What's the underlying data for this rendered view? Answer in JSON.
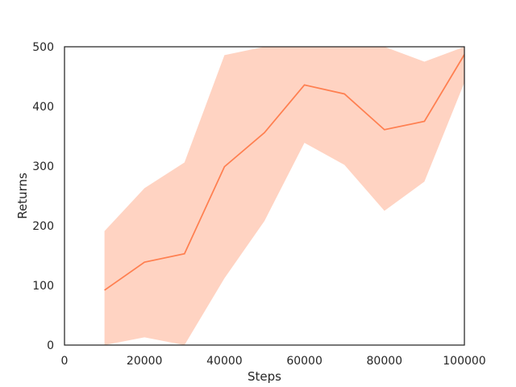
{
  "chart_data": {
    "type": "line",
    "title": "",
    "xlabel": "Steps",
    "ylabel": "Returns",
    "xlim": [
      0,
      100000
    ],
    "ylim": [
      0,
      500
    ],
    "xticks": [
      0,
      20000,
      40000,
      60000,
      80000,
      100000
    ],
    "yticks": [
      0,
      100,
      200,
      300,
      400,
      500
    ],
    "grid": false,
    "legend": "none",
    "series": [
      {
        "color": "#ff7f50",
        "band_color": "#ffc0a8",
        "x": [
          10000,
          20000,
          30000,
          40000,
          50000,
          60000,
          70000,
          80000,
          90000,
          100000
        ],
        "y": [
          92,
          139,
          153,
          299,
          356,
          436,
          421,
          361,
          375,
          487
        ],
        "y_lower": [
          0,
          13,
          0,
          112,
          208,
          339,
          302,
          225,
          274,
          440
        ],
        "y_upper": [
          191,
          263,
          306,
          486,
          500,
          500,
          500,
          500,
          475,
          500
        ]
      }
    ]
  }
}
